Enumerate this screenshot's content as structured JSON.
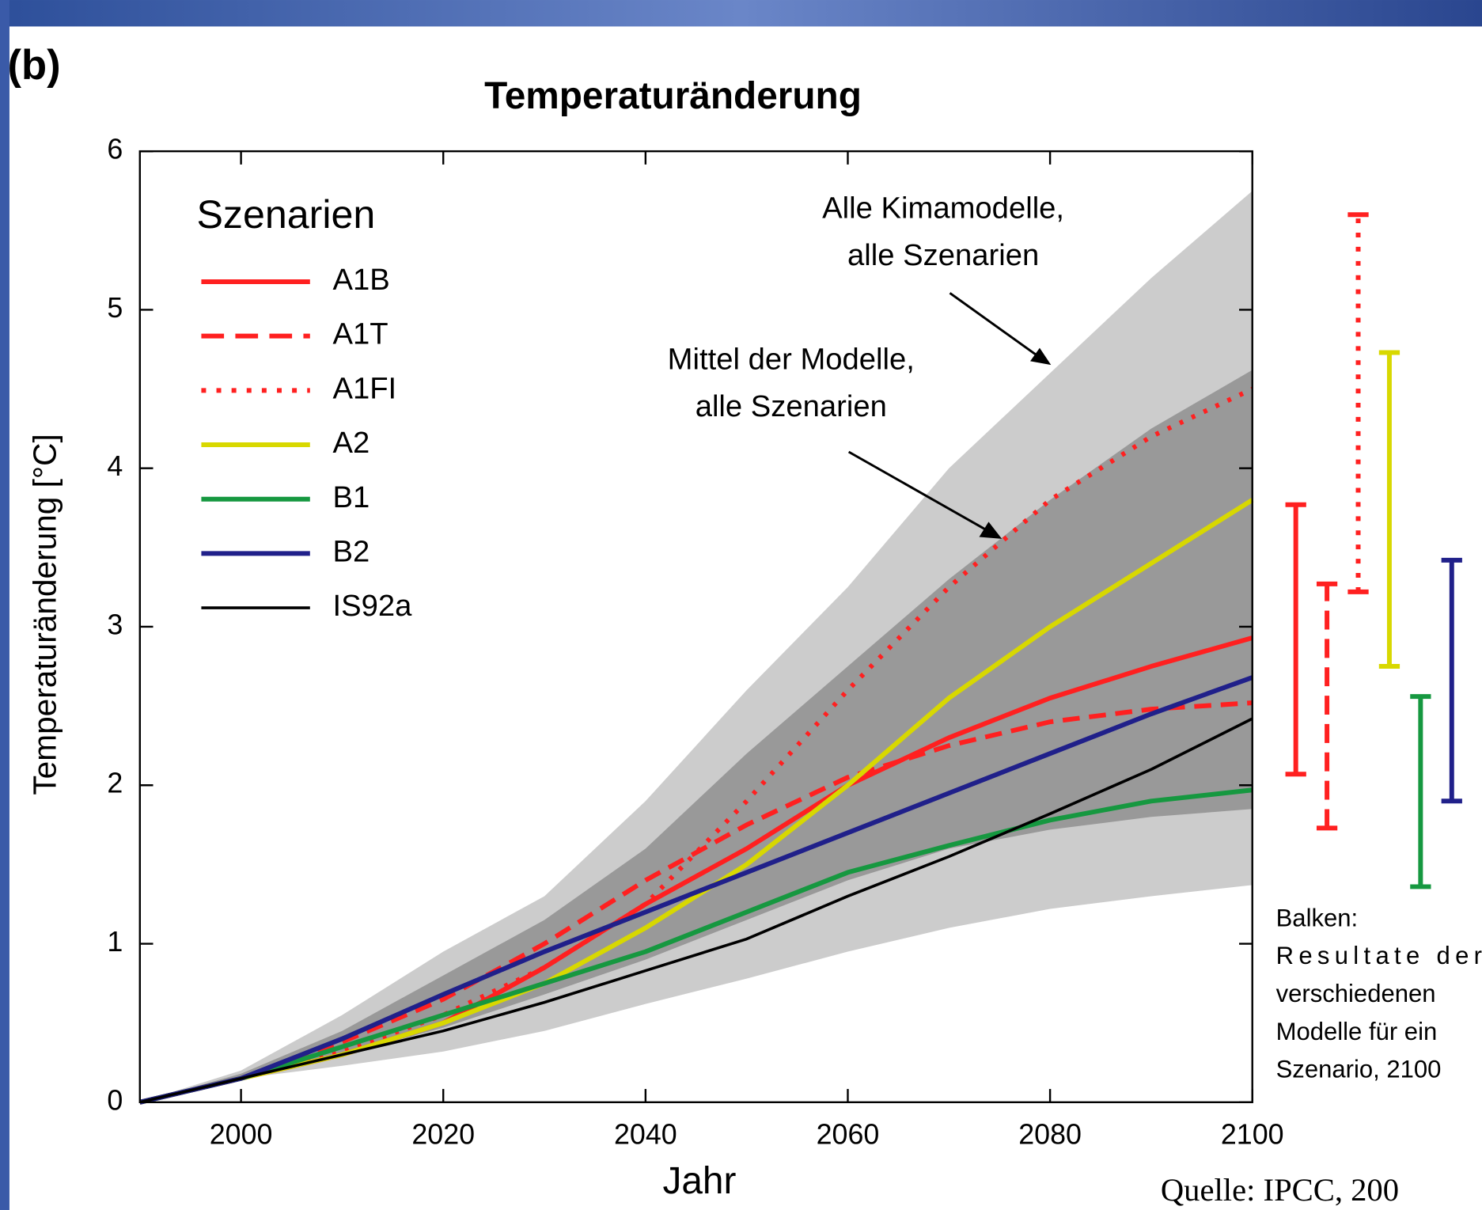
{
  "chart_data": {
    "type": "line",
    "panel_label": "(b)",
    "title": "Temperaturänderung",
    "x_label": "Jahr",
    "y_label": "Temperaturänderung [°C]",
    "legend_title": "Szenarien",
    "x": [
      1990,
      2000,
      2010,
      2020,
      2030,
      2040,
      2050,
      2060,
      2070,
      2080,
      2090,
      2100
    ],
    "xlim": [
      1990,
      2100
    ],
    "xticks": [
      2000,
      2020,
      2040,
      2060,
      2080,
      2100
    ],
    "ylim": [
      0,
      6
    ],
    "yticks": [
      0,
      1,
      2,
      3,
      4,
      5,
      6
    ],
    "bands": [
      {
        "color": "#cccccc",
        "upper": [
          0,
          0.2,
          0.55,
          0.95,
          1.3,
          1.9,
          2.6,
          3.25,
          4.0,
          4.6,
          5.2,
          5.75
        ],
        "lower": [
          0,
          0.15,
          0.23,
          0.32,
          0.45,
          0.62,
          0.78,
          0.95,
          1.1,
          1.22,
          1.3,
          1.37
        ]
      },
      {
        "color": "#999999",
        "upper": [
          0,
          0.18,
          0.45,
          0.8,
          1.15,
          1.6,
          2.2,
          2.75,
          3.3,
          3.8,
          4.25,
          4.62
        ],
        "lower": [
          0,
          0.15,
          0.3,
          0.47,
          0.68,
          0.9,
          1.15,
          1.4,
          1.6,
          1.72,
          1.8,
          1.85
        ]
      }
    ],
    "series": [
      {
        "name": "A1B",
        "color": "#ff2020",
        "dash": "solid",
        "line_width": 5,
        "values": [
          0,
          0.15,
          0.3,
          0.5,
          0.85,
          1.25,
          1.6,
          2.0,
          2.3,
          2.55,
          2.75,
          2.93
        ],
        "range": [
          2.07,
          3.77
        ]
      },
      {
        "name": "A1T",
        "color": "#ff2020",
        "dash": "dashed",
        "line_width": 5,
        "values": [
          0,
          0.15,
          0.38,
          0.65,
          1.0,
          1.4,
          1.75,
          2.05,
          2.25,
          2.4,
          2.48,
          2.52
        ],
        "range": [
          1.73,
          3.27
        ]
      },
      {
        "name": "A1FI",
        "color": "#ff2020",
        "dash": "dotted",
        "line_width": 5,
        "values": [
          0,
          0.15,
          0.32,
          0.55,
          0.85,
          1.25,
          1.9,
          2.6,
          3.25,
          3.8,
          4.2,
          4.5
        ],
        "range": [
          3.22,
          5.6
        ]
      },
      {
        "name": "A2",
        "color": "#d8d800",
        "dash": "solid",
        "line_width": 5,
        "values": [
          0,
          0.15,
          0.3,
          0.5,
          0.75,
          1.1,
          1.5,
          2.0,
          2.55,
          3.0,
          3.4,
          3.8
        ],
        "range": [
          2.75,
          4.73
        ]
      },
      {
        "name": "B1",
        "color": "#169840",
        "dash": "solid",
        "line_width": 5,
        "values": [
          0,
          0.15,
          0.35,
          0.55,
          0.75,
          0.95,
          1.2,
          1.45,
          1.62,
          1.78,
          1.9,
          1.97
        ],
        "range": [
          1.36,
          2.56
        ]
      },
      {
        "name": "B2",
        "color": "#20208a",
        "dash": "solid",
        "line_width": 5,
        "values": [
          0,
          0.15,
          0.4,
          0.68,
          0.95,
          1.2,
          1.45,
          1.7,
          1.95,
          2.2,
          2.45,
          2.68
        ],
        "range": [
          1.9,
          3.42
        ]
      },
      {
        "name": "IS92a",
        "color": "#000000",
        "dash": "solid",
        "line_width": 3,
        "values": [
          0,
          0.15,
          0.3,
          0.45,
          0.63,
          0.83,
          1.03,
          1.3,
          1.55,
          1.82,
          2.1,
          2.42
        ],
        "range": null
      }
    ],
    "annotations": [
      [
        "Alle Kimamodelle,",
        "alle Szenarien"
      ],
      [
        "Mittel der Modelle,",
        "alle Szenarien"
      ]
    ],
    "bar_note": [
      "Balken:",
      "Resultate der",
      "verschiedenen",
      "Modelle für ein",
      "Szenario, 2100"
    ],
    "source": "Quelle: IPCC, 200"
  }
}
